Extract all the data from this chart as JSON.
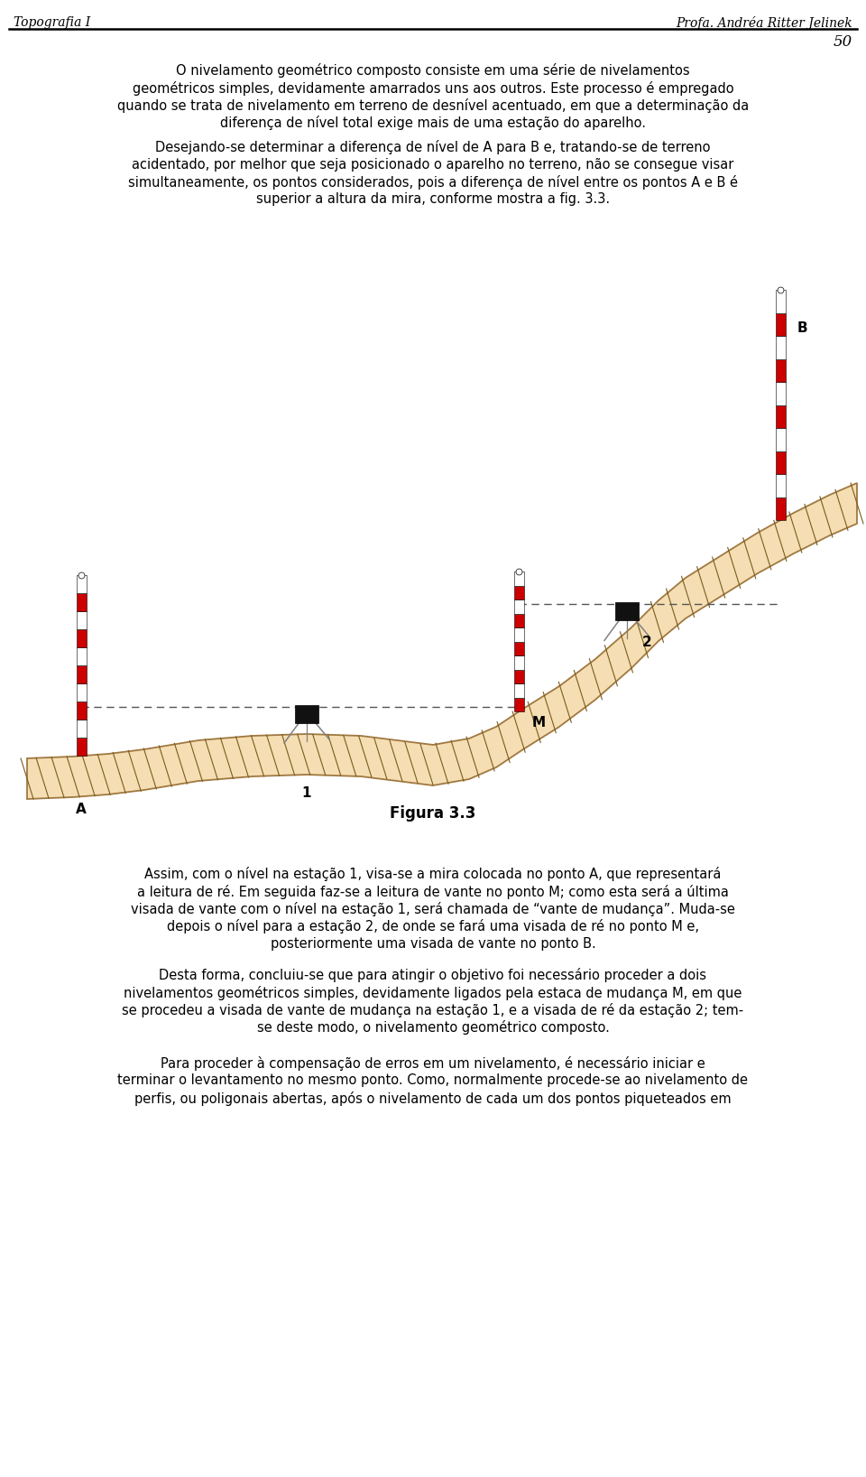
{
  "title_left": "Topografia I",
  "title_right": "Profa. Andréa Ritter Jelinek",
  "page_number": "50",
  "fig_caption": "Figura 3.3",
  "bg_color": "#ffffff",
  "text_color": "#000000",
  "terrain_fill": "#f5deb3",
  "terrain_stroke": "#a07840",
  "hatch_color": "#7a5c1e",
  "staff_white": "#ffffff",
  "staff_red": "#cc0000",
  "instrument_color": "#111111",
  "dashed_line_color": "#555555",
  "para1_lines": [
    "O nivelamento geométrico composto consiste em uma série de nivelamentos",
    "geométricos simples, devidamente amarrados uns aos outros. Este processo é empregado",
    "quando se trata de nivelamento em terreno de desnível acentuado, em que a determinação da",
    "diferença de nível total exige mais de uma estação do aparelho."
  ],
  "para2_lines": [
    "Desejando-se determinar a diferença de nível de A para B e, tratando-se de terreno",
    "acidentado, por melhor que seja posicionado o aparelho no terreno, não se consegue visar",
    "simultaneamente, os pontos considerados, pois a diferença de nível entre os pontos A e B é",
    "superior a altura da mira, conforme mostra a fig. 3.3."
  ],
  "para3_lines": [
    "Assim, com o nível na estação 1, visa-se a mira colocada no ponto A, que representará",
    "a leitura de ré. Em seguida faz-se a leitura de vante no ponto M; como esta será a última",
    "visada de vante com o nível na estação 1, será chamada de “vante de mudança”. Muda-se",
    "depois o nível para a estação 2, de onde se fará uma visada de ré no ponto M e,",
    "posteriormente uma visada de vante no ponto B."
  ],
  "para4_lines": [
    "Desta forma, concluiu-se que para atingir o objetivo foi necessário proceder a dois",
    "nivelamentos geométricos simples, devidamente ligados pela estaca de mudança M, em que",
    "se procedeu a visada de vante de mudança na estação 1, e a visada de ré da estação 2; tem-",
    "se deste modo, o nivelamento geométrico composto."
  ],
  "para5_lines": [
    "Para proceder à compensação de erros em um nivelamento, é necessário iniciar e",
    "terminar o levantamento no mesmo ponto. Como, normalmente procede-se ao nivelamento de",
    "perfis, ou poligonais abertas, após o nivelamento de cada um dos pontos piqueteados em"
  ],
  "terrain_top_x": [
    30,
    80,
    120,
    160,
    220,
    280,
    340,
    400,
    440,
    480,
    520,
    550,
    580,
    620,
    660,
    700,
    730,
    760,
    800,
    840,
    880,
    920,
    950
  ],
  "terrain_top_y": [
    840,
    838,
    835,
    830,
    820,
    815,
    813,
    815,
    820,
    825,
    818,
    805,
    785,
    760,
    730,
    695,
    665,
    640,
    615,
    590,
    568,
    548,
    535
  ],
  "terrain_thickness": 45
}
